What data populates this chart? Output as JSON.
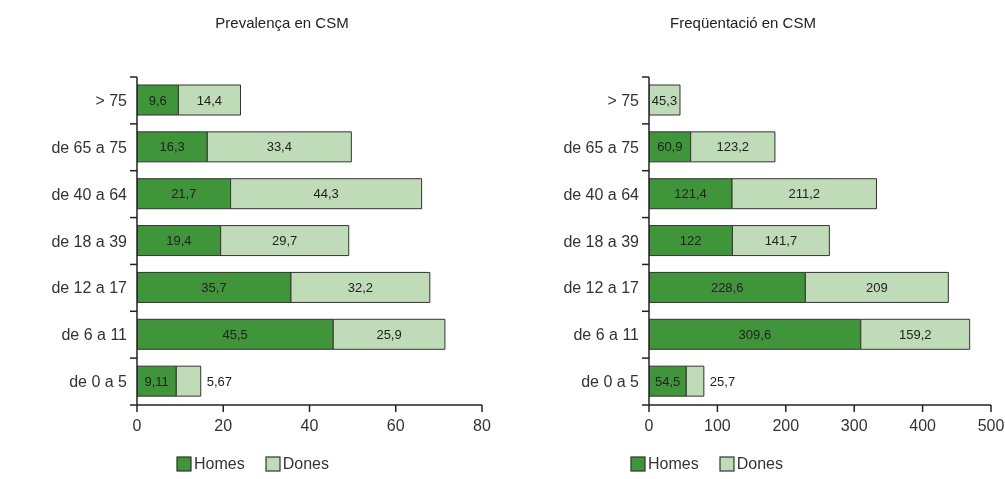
{
  "chart_data": [
    {
      "type": "bar",
      "title": "Prevalença en CSM",
      "orientation": "horizontal",
      "stacked": true,
      "legend": "bottom",
      "categories": [
        "> 75",
        "de 65 a 75",
        "de 40 a 64",
        "de 18 a 39",
        "de 12 a 17",
        "de 6 a 11",
        "de 0 a 5"
      ],
      "series": [
        {
          "name": "Homes",
          "color": "#40943a",
          "values": [
            9.6,
            16.3,
            21.7,
            19.4,
            35.7,
            45.5,
            9.11
          ],
          "value_labels": [
            "9,6",
            "16,3",
            "21,7",
            "19,4",
            "35,7",
            "45,5",
            "9,11"
          ]
        },
        {
          "name": "Dones",
          "color": "#c0dbb8",
          "values": [
            14.4,
            33.4,
            44.3,
            29.7,
            32.2,
            25.9,
            5.67
          ],
          "value_labels": [
            "14,4",
            "33,4",
            "44,3",
            "29,7",
            "32,2",
            "25,9",
            "5,67"
          ]
        }
      ],
      "xlim": [
        0,
        80
      ],
      "xticks": [
        0,
        20,
        40,
        60,
        80
      ]
    },
    {
      "type": "bar",
      "title": "Freqüentació en CSM",
      "orientation": "horizontal",
      "stacked": true,
      "legend": "bottom",
      "categories": [
        "> 75",
        "de 65 a 75",
        "de 40 a 64",
        "de 18 a 39",
        "de 12 a 17",
        "de 6 a 11",
        "de 0 a 5"
      ],
      "series": [
        {
          "name": "Homes",
          "color": "#40943a",
          "values": [
            null,
            60.9,
            121.4,
            122,
            228.6,
            309.6,
            54.5
          ],
          "value_labels": [
            null,
            "60,9",
            "121,4",
            "122",
            "228,6",
            "309,6",
            "54,5"
          ]
        },
        {
          "name": "Dones",
          "color": "#c0dbb8",
          "values": [
            45.3,
            123.2,
            211.2,
            141.7,
            209,
            159.2,
            25.7
          ],
          "value_labels": [
            "45,3",
            "123,2",
            "211,2",
            "141,7",
            "209",
            "159,2",
            "25,7"
          ]
        }
      ],
      "xlim": [
        0,
        500
      ],
      "xticks": [
        0,
        100,
        200,
        300,
        400,
        500
      ]
    }
  ]
}
